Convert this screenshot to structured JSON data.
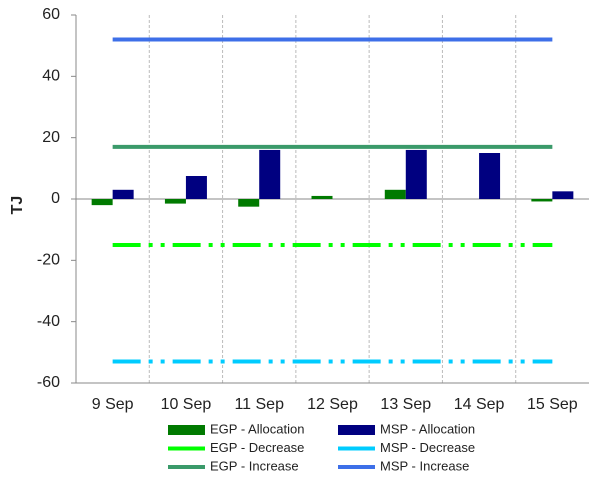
{
  "chart_data": {
    "type": "bar",
    "y_label": "TJ",
    "categories": [
      "9 Sep",
      "10 Sep",
      "11 Sep",
      "12 Sep",
      "13 Sep",
      "14 Sep",
      "15 Sep"
    ],
    "ylim": [
      -60,
      60
    ],
    "yticks": [
      -60,
      -40,
      -20,
      0,
      20,
      40,
      60
    ],
    "series": [
      {
        "name": "EGP - Allocation",
        "kind": "bar",
        "color": "#007a00",
        "values": [
          -2,
          -1.5,
          -2.5,
          1,
          3,
          0,
          -0.8
        ]
      },
      {
        "name": "MSP - Allocation",
        "kind": "bar",
        "color": "#000080",
        "values": [
          3,
          7.5,
          16,
          0,
          16,
          15,
          2.5
        ]
      },
      {
        "name": "EGP - Decrease",
        "kind": "line",
        "style": "dashdot",
        "color": "#00ff00",
        "values": [
          -15,
          -15,
          -15,
          -15,
          -15,
          -15,
          -15
        ]
      },
      {
        "name": "MSP - Decrease",
        "kind": "line",
        "style": "dashdot",
        "color": "#00ccff",
        "values": [
          -53,
          -53,
          -53,
          -53,
          -53,
          -53,
          -53
        ]
      },
      {
        "name": "EGP - Increase",
        "kind": "line",
        "style": "solid",
        "color": "#3a9a6a",
        "values": [
          17,
          17,
          17,
          17,
          17,
          17,
          17
        ]
      },
      {
        "name": "MSP - Increase",
        "kind": "line",
        "style": "solid",
        "color": "#3d6fe8",
        "values": [
          52,
          52,
          52,
          52,
          52,
          52,
          52
        ]
      }
    ]
  }
}
